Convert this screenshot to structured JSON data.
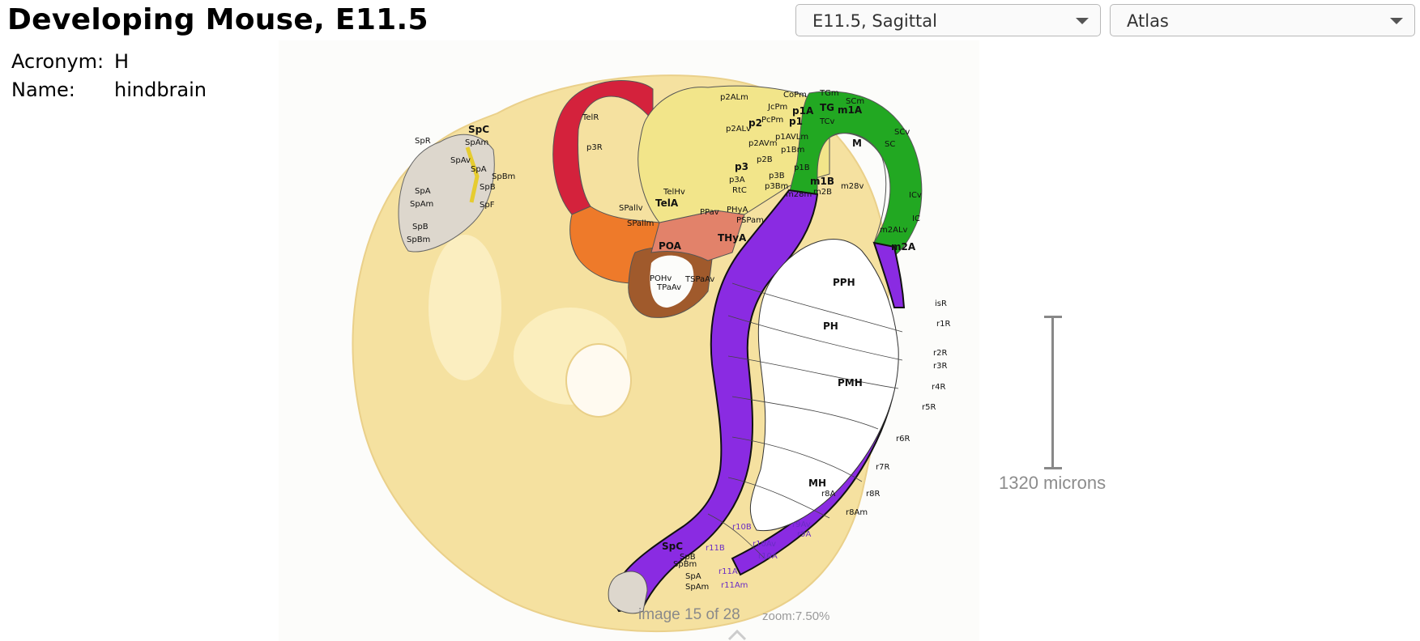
{
  "header": {
    "title": "Developing Mouse, E11.5"
  },
  "info": {
    "acronym_label": "Acronym:",
    "acronym_value": "H",
    "name_label": "Name:",
    "name_value": "hindbrain"
  },
  "selects": {
    "section": "E11.5, Sagittal",
    "view": "Atlas"
  },
  "scalebar": {
    "label": "1320 microns"
  },
  "status": {
    "image": "image 15 of 28",
    "zoom": "zoom:7.50%"
  },
  "colors": {
    "hindbrain": "#8a2be2",
    "midbrain": "#22a822",
    "prosomeres": "#f2e58a",
    "telencephalon": "#ee7a2a",
    "roof_plate": "#d4223c",
    "hypothalamus": "#a05a2c",
    "spinal": "#dcd6cc",
    "tissue": "#f5e1a0"
  },
  "labels": {
    "region_labels": [
      "TelR",
      "p3R",
      "p2ALm",
      "CoPm",
      "TGm",
      "SCm",
      "JcPm",
      "p1A",
      "m1A",
      "TG",
      "TCv",
      "PcPm",
      "p1",
      "p2",
      "p2ALv",
      "p1AVLm",
      "M",
      "SC",
      "p2AVm",
      "p1Bm",
      "SCv",
      "p3",
      "p2B",
      "p1B",
      "p3A",
      "p3B",
      "RtC",
      "p3Bm",
      "m1B",
      "m2B",
      "m28m",
      "m28v",
      "TelHv",
      "TelA",
      "SPallv",
      "SPallm",
      "PPav",
      "PHyA",
      "PSPam",
      "THyA",
      "POA",
      "POHv",
      "TPaAv",
      "TSPaAv",
      "ICv",
      "IC",
      "m2ALv",
      "m2A",
      "PPH",
      "PH",
      "PMH",
      "MH",
      "isR",
      "r1R",
      "r2R",
      "r3R",
      "r4R",
      "r5R",
      "r6R",
      "r7R",
      "r8R",
      "r8A",
      "r8Am",
      "r9A",
      "r9Av",
      "r10A",
      "r10Av",
      "r10B",
      "r11A",
      "r11B",
      "r11Am",
      "SpC",
      "SpB",
      "SpBm",
      "SpA",
      "SpAm",
      "SpR",
      "SpF",
      "SpAv"
    ]
  }
}
